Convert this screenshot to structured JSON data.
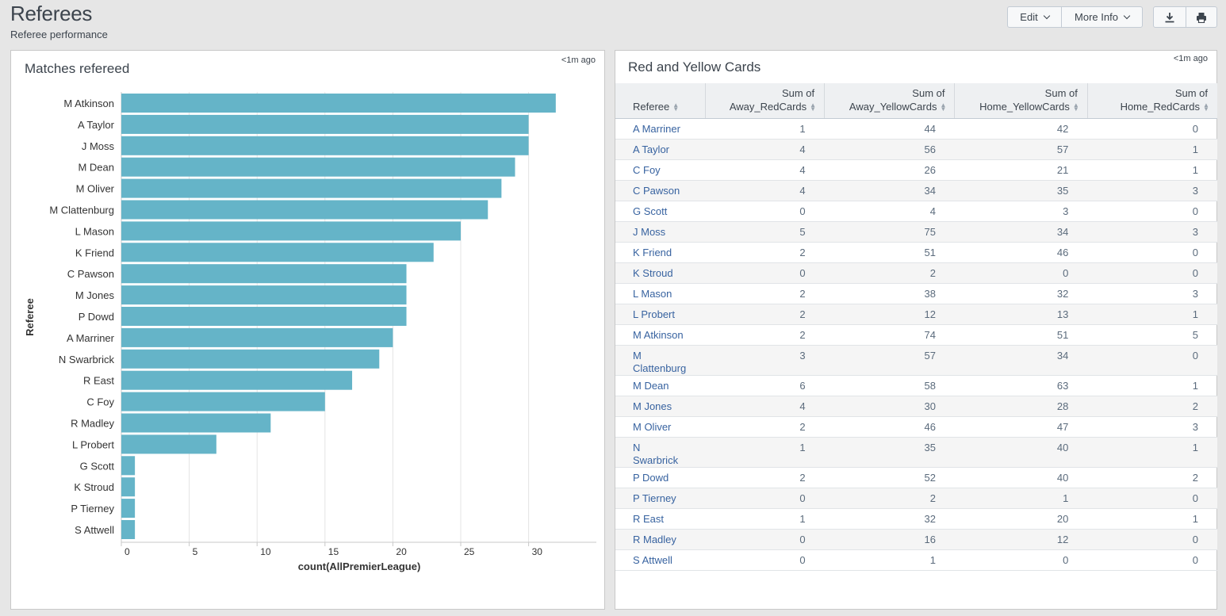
{
  "header": {
    "title": "Referees",
    "subtitle": "Referee performance",
    "edit_label": "Edit",
    "more_info_label": "More Info"
  },
  "left_panel": {
    "title": "Matches refereed",
    "updated": "<1m ago"
  },
  "right_panel": {
    "title": "Red and Yellow Cards",
    "updated": "<1m ago"
  },
  "colors": {
    "bar": "#65b4c8",
    "link": "#3863a0"
  },
  "chart_data": {
    "type": "bar",
    "orientation": "horizontal",
    "xlabel": "count(AllPremierLeague)",
    "ylabel": "Referee",
    "xlim": [
      0,
      35
    ],
    "xticks": [
      0,
      5,
      10,
      15,
      20,
      25,
      30
    ],
    "grid": true,
    "categories": [
      "M Atkinson",
      "A Taylor",
      "J Moss",
      "M Dean",
      "M Oliver",
      "M Clattenburg",
      "L Mason",
      "K Friend",
      "C Pawson",
      "M Jones",
      "P Dowd",
      "A Marriner",
      "N Swarbrick",
      "R East",
      "C Foy",
      "R Madley",
      "L Probert",
      "G Scott",
      "K Stroud",
      "P Tierney",
      "S Attwell"
    ],
    "values": [
      32,
      30,
      30,
      29,
      28,
      27,
      25,
      23,
      21,
      21,
      21,
      20,
      19,
      17,
      15,
      11,
      7,
      1,
      1,
      1,
      1
    ]
  },
  "table": {
    "columns": [
      {
        "line1": "Referee",
        "line2": ""
      },
      {
        "line1": "Sum of",
        "line2": "Away_RedCards"
      },
      {
        "line1": "Sum of",
        "line2": "Away_YellowCards"
      },
      {
        "line1": "Sum of",
        "line2": "Home_YellowCards"
      },
      {
        "line1": "Sum of",
        "line2": "Home_RedCards"
      }
    ],
    "rows": [
      [
        "A Marriner",
        "1",
        "44",
        "42",
        "0"
      ],
      [
        "A Taylor",
        "4",
        "56",
        "57",
        "1"
      ],
      [
        "C Foy",
        "4",
        "26",
        "21",
        "1"
      ],
      [
        "C Pawson",
        "4",
        "34",
        "35",
        "3"
      ],
      [
        "G Scott",
        "0",
        "4",
        "3",
        "0"
      ],
      [
        "J Moss",
        "5",
        "75",
        "34",
        "3"
      ],
      [
        "K Friend",
        "2",
        "51",
        "46",
        "0"
      ],
      [
        "K Stroud",
        "0",
        "2",
        "0",
        "0"
      ],
      [
        "L Mason",
        "2",
        "38",
        "32",
        "3"
      ],
      [
        "L Probert",
        "2",
        "12",
        "13",
        "1"
      ],
      [
        "M Atkinson",
        "2",
        "74",
        "51",
        "5"
      ],
      [
        "M Clattenburg",
        "3",
        "57",
        "34",
        "0"
      ],
      [
        "M Dean",
        "6",
        "58",
        "63",
        "1"
      ],
      [
        "M Jones",
        "4",
        "30",
        "28",
        "2"
      ],
      [
        "M Oliver",
        "2",
        "46",
        "47",
        "3"
      ],
      [
        "N Swarbrick",
        "1",
        "35",
        "40",
        "1"
      ],
      [
        "P Dowd",
        "2",
        "52",
        "40",
        "2"
      ],
      [
        "P Tierney",
        "0",
        "2",
        "1",
        "0"
      ],
      [
        "R East",
        "1",
        "32",
        "20",
        "1"
      ],
      [
        "R Madley",
        "0",
        "16",
        "12",
        "0"
      ],
      [
        "S Attwell",
        "0",
        "1",
        "0",
        "0"
      ]
    ]
  }
}
